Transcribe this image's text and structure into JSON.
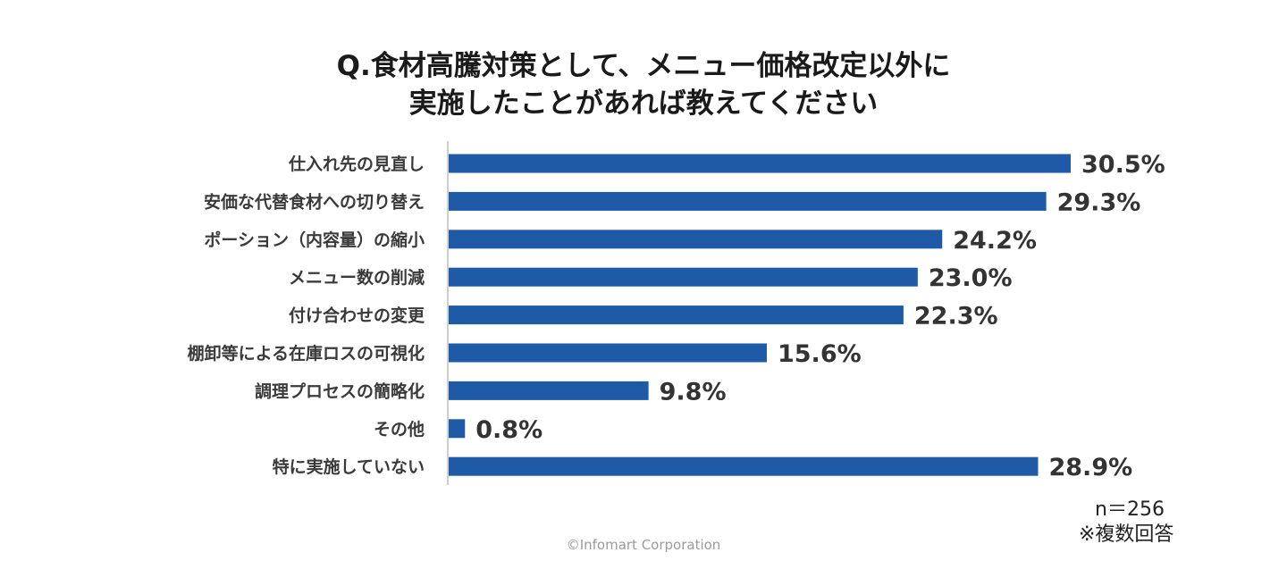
{
  "chart_data": {
    "type": "bar",
    "orientation": "horizontal",
    "title_lines": [
      "Q.食材高騰対策として、メニュー価格改定以外に",
      "実施したことがあれば教えてください"
    ],
    "categories": [
      "仕入れ先の見直し",
      "安価な代替食材への切り替え",
      "ポーション（内容量）の縮小",
      "メニュー数の削減",
      "付け合わせの変更",
      "棚卸等による在庫ロスの可視化",
      "調理プロセスの簡略化",
      "その他",
      "特に実施していない"
    ],
    "values": [
      30.5,
      29.3,
      24.2,
      23.0,
      22.3,
      15.6,
      9.8,
      0.8,
      28.9
    ],
    "value_labels": [
      "30.5%",
      "29.3%",
      "24.2%",
      "23.0%",
      "22.3%",
      "15.6%",
      "9.8%",
      "0.8%",
      "28.9%"
    ],
    "unit": "%",
    "bar_color": "#1f5aa6",
    "axis_color": "#bfbfbf",
    "grid": false,
    "legend": "none"
  },
  "notes": {
    "sample_size": "n＝256",
    "multiple_answers": "※複数回答"
  },
  "credit": "©Infomart Corporation"
}
